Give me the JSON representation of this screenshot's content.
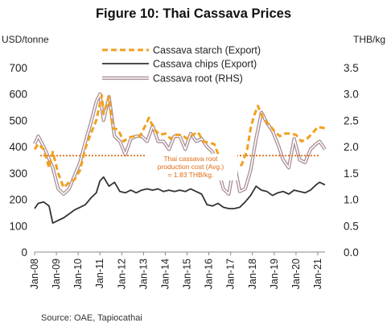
{
  "title": "Figure 10: Thai Cassava Prices",
  "source": "Source: OAE, Tapiocathai",
  "chart_data": {
    "type": "line",
    "y_left_label": "USD/tonne",
    "y_right_label": "THB/kg",
    "ylim_left": [
      0,
      700
    ],
    "ylim_right": [
      0,
      3.5
    ],
    "left_ticks": [
      "0",
      "100",
      "200",
      "300",
      "400",
      "500",
      "600",
      "700"
    ],
    "right_ticks": [
      "0.0",
      "0.5",
      "1.0",
      "1.5",
      "2.0",
      "2.5",
      "3.0",
      "3.5"
    ],
    "x_ticks": [
      "Jan-08",
      "Jan-09",
      "Jan-10",
      "Jan-11",
      "Jan-12",
      "Jan-13",
      "Jan-14",
      "Jan-15",
      "Jan-16",
      "Jan-17",
      "Jan-18",
      "Jan-19",
      "Jan-20",
      "Jan-21"
    ],
    "x_range": [
      "2008-01",
      "2021-05"
    ],
    "legend": [
      "Cassava starch (Export)",
      "Cassava chips (Export)",
      "Cassava root (RHS)"
    ],
    "legend_position": "top-center",
    "annotation": {
      "text": [
        "Thai cassava root",
        "production  cost  (Avg.)",
        "= 1.83 THB/kg."
      ],
      "value_rhs": 1.83
    },
    "series": [
      {
        "name": "Cassava starch (Export)",
        "axis": "left",
        "style": "dashed",
        "color": "#F0A020",
        "points": [
          [
            "2008-01",
            390
          ],
          [
            "2008-03",
            410
          ],
          [
            "2008-06",
            390
          ],
          [
            "2008-09",
            320
          ],
          [
            "2008-11",
            380
          ],
          [
            "2009-02",
            300
          ],
          [
            "2009-05",
            245
          ],
          [
            "2009-08",
            265
          ],
          [
            "2009-11",
            275
          ],
          [
            "2010-02",
            310
          ],
          [
            "2010-05",
            395
          ],
          [
            "2010-08",
            450
          ],
          [
            "2010-11",
            500
          ],
          [
            "2011-02",
            595
          ],
          [
            "2011-03",
            525
          ],
          [
            "2011-06",
            590
          ],
          [
            "2011-08",
            470
          ],
          [
            "2011-11",
            465
          ],
          [
            "2012-02",
            420
          ],
          [
            "2012-05",
            435
          ],
          [
            "2012-08",
            440
          ],
          [
            "2012-11",
            440
          ],
          [
            "2013-02",
            480
          ],
          [
            "2013-04",
            510
          ],
          [
            "2013-07",
            465
          ],
          [
            "2013-10",
            445
          ],
          [
            "2014-01",
            450
          ],
          [
            "2014-04",
            430
          ],
          [
            "2014-07",
            445
          ],
          [
            "2014-10",
            445
          ],
          [
            "2015-01",
            430
          ],
          [
            "2015-04",
            445
          ],
          [
            "2015-07",
            455
          ],
          [
            "2015-10",
            420
          ],
          [
            "2016-01",
            415
          ],
          [
            "2016-04",
            410
          ],
          [
            "2016-07",
            355
          ],
          [
            "2016-10",
            325
          ],
          [
            "2017-01",
            320
          ],
          [
            "2017-04",
            330
          ],
          [
            "2017-07",
            330
          ],
          [
            "2017-10",
            385
          ],
          [
            "2017-12",
            470
          ],
          [
            "2018-02",
            520
          ],
          [
            "2018-04",
            555
          ],
          [
            "2018-07",
            505
          ],
          [
            "2018-10",
            485
          ],
          [
            "2019-01",
            460
          ],
          [
            "2019-04",
            440
          ],
          [
            "2019-07",
            450
          ],
          [
            "2019-10",
            450
          ],
          [
            "2020-01",
            445
          ],
          [
            "2020-04",
            420
          ],
          [
            "2020-07",
            430
          ],
          [
            "2020-10",
            450
          ],
          [
            "2021-01",
            475
          ],
          [
            "2021-05",
            470
          ]
        ]
      },
      {
        "name": "Cassava chips (Export)",
        "axis": "left",
        "style": "solid",
        "color": "#333333",
        "points": [
          [
            "2008-01",
            165
          ],
          [
            "2008-03",
            185
          ],
          [
            "2008-06",
            190
          ],
          [
            "2008-09",
            175
          ],
          [
            "2008-11",
            110
          ],
          [
            "2009-02",
            120
          ],
          [
            "2009-05",
            130
          ],
          [
            "2009-08",
            145
          ],
          [
            "2009-11",
            160
          ],
          [
            "2010-02",
            170
          ],
          [
            "2010-05",
            180
          ],
          [
            "2010-08",
            205
          ],
          [
            "2010-11",
            225
          ],
          [
            "2011-01",
            270
          ],
          [
            "2011-03",
            285
          ],
          [
            "2011-06",
            250
          ],
          [
            "2011-09",
            265
          ],
          [
            "2011-12",
            230
          ],
          [
            "2012-03",
            225
          ],
          [
            "2012-06",
            235
          ],
          [
            "2012-09",
            225
          ],
          [
            "2012-12",
            235
          ],
          [
            "2013-03",
            240
          ],
          [
            "2013-06",
            235
          ],
          [
            "2013-09",
            240
          ],
          [
            "2013-12",
            230
          ],
          [
            "2014-03",
            235
          ],
          [
            "2014-06",
            230
          ],
          [
            "2014-09",
            235
          ],
          [
            "2014-12",
            230
          ],
          [
            "2015-03",
            240
          ],
          [
            "2015-06",
            230
          ],
          [
            "2015-09",
            220
          ],
          [
            "2015-12",
            180
          ],
          [
            "2016-03",
            175
          ],
          [
            "2016-06",
            185
          ],
          [
            "2016-09",
            170
          ],
          [
            "2016-12",
            165
          ],
          [
            "2017-03",
            165
          ],
          [
            "2017-06",
            170
          ],
          [
            "2017-09",
            190
          ],
          [
            "2017-12",
            215
          ],
          [
            "2018-03",
            250
          ],
          [
            "2018-06",
            235
          ],
          [
            "2018-09",
            230
          ],
          [
            "2018-12",
            215
          ],
          [
            "2019-03",
            225
          ],
          [
            "2019-06",
            230
          ],
          [
            "2019-09",
            220
          ],
          [
            "2019-12",
            235
          ],
          [
            "2020-03",
            230
          ],
          [
            "2020-06",
            225
          ],
          [
            "2020-09",
            235
          ],
          [
            "2020-12",
            255
          ],
          [
            "2021-02",
            265
          ],
          [
            "2021-05",
            255
          ]
        ]
      },
      {
        "name": "Cassava root (RHS)",
        "axis": "right",
        "style": "solid",
        "color": "#A88E94",
        "points": [
          [
            "2008-01",
            2.05
          ],
          [
            "2008-03",
            2.2
          ],
          [
            "2008-06",
            2.0
          ],
          [
            "2008-08",
            1.85
          ],
          [
            "2008-11",
            1.6
          ],
          [
            "2009-02",
            1.2
          ],
          [
            "2009-05",
            1.1
          ],
          [
            "2009-08",
            1.2
          ],
          [
            "2009-11",
            1.45
          ],
          [
            "2010-02",
            1.7
          ],
          [
            "2010-05",
            2.1
          ],
          [
            "2010-08",
            2.45
          ],
          [
            "2010-11",
            2.85
          ],
          [
            "2011-01",
            3.0
          ],
          [
            "2011-03",
            2.5
          ],
          [
            "2011-06",
            2.95
          ],
          [
            "2011-09",
            2.2
          ],
          [
            "2011-12",
            2.1
          ],
          [
            "2012-03",
            1.85
          ],
          [
            "2012-06",
            2.15
          ],
          [
            "2012-09",
            2.2
          ],
          [
            "2012-12",
            2.2
          ],
          [
            "2013-03",
            2.1
          ],
          [
            "2013-06",
            2.4
          ],
          [
            "2013-09",
            2.1
          ],
          [
            "2013-12",
            2.1
          ],
          [
            "2014-03",
            1.95
          ],
          [
            "2014-06",
            2.2
          ],
          [
            "2014-09",
            2.2
          ],
          [
            "2014-12",
            1.95
          ],
          [
            "2015-03",
            2.25
          ],
          [
            "2015-06",
            2.1
          ],
          [
            "2015-09",
            2.15
          ],
          [
            "2015-12",
            2.0
          ],
          [
            "2016-03",
            1.9
          ],
          [
            "2016-06",
            1.6
          ],
          [
            "2016-09",
            1.2
          ],
          [
            "2016-12",
            1.1
          ],
          [
            "2017-03",
            1.7
          ],
          [
            "2017-06",
            1.15
          ],
          [
            "2017-09",
            1.2
          ],
          [
            "2017-12",
            1.55
          ],
          [
            "2018-03",
            2.15
          ],
          [
            "2018-06",
            2.65
          ],
          [
            "2018-09",
            2.45
          ],
          [
            "2018-12",
            2.3
          ],
          [
            "2019-03",
            2.05
          ],
          [
            "2019-06",
            1.75
          ],
          [
            "2019-09",
            1.6
          ],
          [
            "2019-12",
            2.15
          ],
          [
            "2020-03",
            1.75
          ],
          [
            "2020-06",
            1.7
          ],
          [
            "2020-09",
            1.95
          ],
          [
            "2020-12",
            2.05
          ],
          [
            "2021-02",
            2.1
          ],
          [
            "2021-05",
            1.95
          ]
        ]
      }
    ]
  }
}
